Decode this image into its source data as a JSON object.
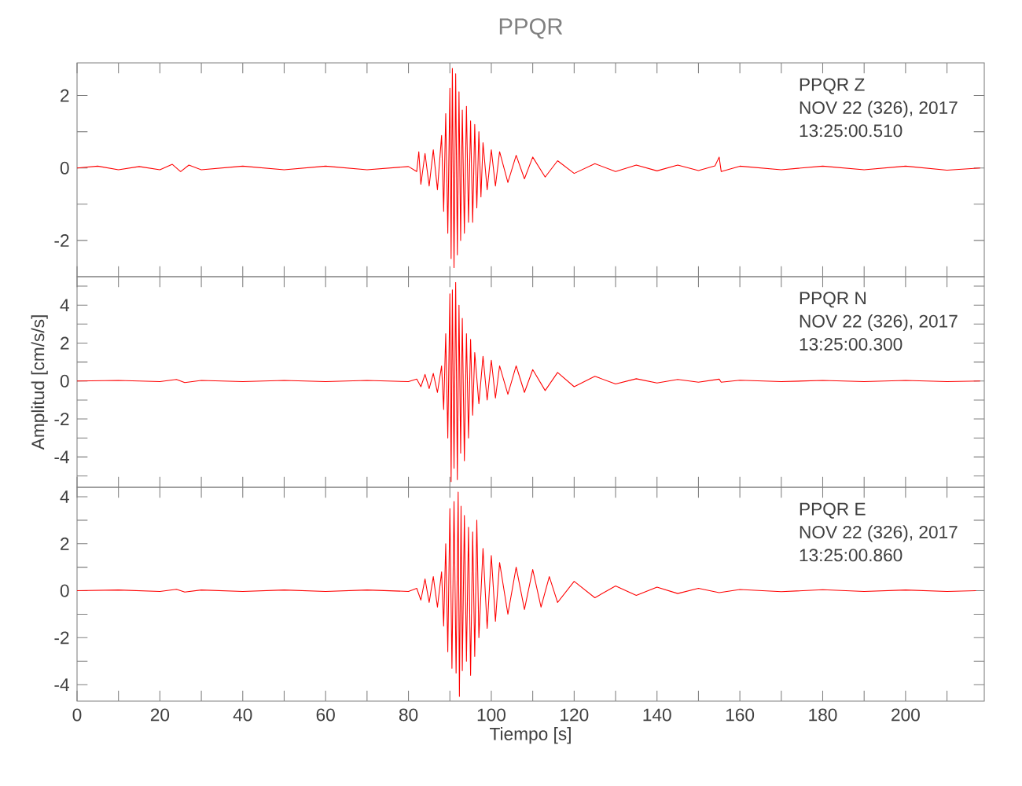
{
  "chart_data": [
    {
      "type": "line",
      "title": "PPQR",
      "color": "#ff0000",
      "tick_labels": "y",
      "annotations": [
        "PPQR   Z",
        "NOV 22 (326), 2017",
        "13:25:00.510"
      ],
      "xlim": [
        0,
        219
      ],
      "ylim": [
        -3,
        2.9
      ],
      "xticks": [
        0,
        {
          "value": 10,
          "label": null
        },
        20,
        {
          "value": 30,
          "label": null
        },
        40,
        {
          "value": 50,
          "label": null
        },
        60,
        {
          "value": 70,
          "label": null
        },
        80,
        {
          "value": 90,
          "label": null
        },
        100,
        {
          "value": 110,
          "label": null
        },
        120,
        {
          "value": 130,
          "label": null
        },
        140,
        {
          "value": 150,
          "label": null
        },
        160,
        {
          "value": 170,
          "label": null
        },
        180,
        {
          "value": 190,
          "label": null
        },
        200,
        {
          "value": 210,
          "label": null
        }
      ],
      "yticks": [
        -2,
        {
          "value": -1,
          "label": null
        },
        0,
        {
          "value": 1,
          "label": null
        },
        2
      ],
      "x": [
        0,
        5,
        10,
        15,
        20,
        23,
        25,
        27,
        30,
        40,
        50,
        60,
        70,
        80,
        82,
        82.5,
        83,
        84,
        85,
        86,
        87,
        88,
        88.5,
        89,
        89.5,
        90,
        90.3,
        90.6,
        91,
        91.4,
        91.8,
        92.2,
        92.6,
        93,
        93.5,
        94,
        94.5,
        95,
        95.5,
        96,
        96.5,
        97,
        97.5,
        98,
        99,
        100,
        101,
        102,
        104,
        106,
        108,
        110,
        113,
        116,
        120,
        125,
        130,
        135,
        140,
        145,
        150,
        154,
        155,
        155.5,
        160,
        170,
        180,
        190,
        200,
        210,
        218
      ],
      "values": [
        0,
        0.05,
        -0.05,
        0.04,
        -0.05,
        0.1,
        -0.1,
        0.08,
        -0.05,
        0.05,
        -0.05,
        0.05,
        -0.05,
        0.04,
        -0.1,
        0.45,
        -0.45,
        0.4,
        -0.5,
        0.5,
        -0.6,
        0.9,
        -1.2,
        1.5,
        -1.8,
        2.2,
        -2.5,
        2.75,
        -2.75,
        2.6,
        -2.4,
        2.1,
        -2.0,
        1.6,
        -1.8,
        1.7,
        -1.5,
        1.3,
        -1.5,
        1.2,
        -1.1,
        1.0,
        -0.8,
        0.7,
        -0.6,
        0.5,
        -0.5,
        0.45,
        -0.4,
        0.35,
        -0.3,
        0.3,
        -0.25,
        0.2,
        -0.15,
        0.12,
        -0.1,
        0.08,
        -0.08,
        0.08,
        -0.07,
        0.06,
        0.3,
        -0.1,
        0.05,
        -0.05,
        0.05,
        -0.05,
        0.05,
        -0.06,
        0
      ]
    },
    {
      "type": "line",
      "ylabel": "Amplitud [cm/s/s]",
      "color": "#ff0000",
      "tick_labels": "y",
      "annotations": [
        "PPQR   N",
        "NOV 22 (326), 2017",
        "13:25:00.300"
      ],
      "xlim": [
        0,
        219
      ],
      "ylim": [
        -5.6,
        5.5
      ],
      "xticks": [
        0,
        {
          "value": 10,
          "label": null
        },
        20,
        {
          "value": 30,
          "label": null
        },
        40,
        {
          "value": 50,
          "label": null
        },
        60,
        {
          "value": 70,
          "label": null
        },
        80,
        {
          "value": 90,
          "label": null
        },
        100,
        {
          "value": 110,
          "label": null
        },
        120,
        {
          "value": 130,
          "label": null
        },
        140,
        {
          "value": 150,
          "label": null
        },
        160,
        {
          "value": 170,
          "label": null
        },
        180,
        {
          "value": 190,
          "label": null
        },
        200,
        {
          "value": 210,
          "label": null
        }
      ],
      "yticks": [
        {
          "value": -5,
          "label": null
        },
        -4,
        {
          "value": -3,
          "label": null
        },
        -2,
        {
          "value": -1,
          "label": null
        },
        0,
        {
          "value": 1,
          "label": null
        },
        2,
        {
          "value": 3,
          "label": null
        },
        4,
        {
          "value": 5,
          "label": null
        }
      ],
      "x": [
        0,
        10,
        20,
        24,
        26,
        30,
        40,
        50,
        60,
        70,
        80,
        82,
        83,
        84,
        85,
        86,
        87,
        88,
        88.5,
        89,
        89.5,
        90,
        90.3,
        90.6,
        91,
        91.4,
        91.8,
        92.2,
        92.6,
        93,
        93.5,
        94,
        94.5,
        95,
        95.5,
        96,
        97,
        98,
        99,
        100,
        101,
        102,
        104,
        106,
        108,
        110,
        113,
        116,
        120,
        125,
        130,
        135,
        140,
        145,
        150,
        155,
        155.5,
        160,
        170,
        180,
        190,
        200,
        210,
        218
      ],
      "values": [
        0,
        0.03,
        -0.03,
        0.08,
        -0.08,
        0.03,
        -0.03,
        0.03,
        -0.03,
        0.03,
        -0.03,
        0.1,
        -0.3,
        0.35,
        -0.4,
        0.4,
        -0.6,
        0.8,
        -1.5,
        2.5,
        -3.0,
        4.6,
        -5.3,
        4.8,
        -4.6,
        5.2,
        -5.2,
        4.0,
        -3.8,
        3.3,
        -4.2,
        2.5,
        -3.0,
        2.2,
        -1.8,
        1.5,
        -1.2,
        1.3,
        -1.0,
        1.1,
        -0.9,
        0.8,
        -0.7,
        0.8,
        -0.6,
        0.6,
        -0.5,
        0.45,
        -0.3,
        0.25,
        -0.15,
        0.12,
        -0.1,
        0.08,
        -0.06,
        0.1,
        -0.06,
        0.04,
        -0.03,
        0.03,
        -0.03,
        0.03,
        -0.03,
        0
      ]
    },
    {
      "type": "line",
      "xlabel": "Tiempo [s]",
      "color": "#ff0000",
      "annotations": [
        "PPQR   E",
        "NOV 22 (326), 2017",
        "13:25:00.860"
      ],
      "xlim": [
        0,
        219
      ],
      "ylim": [
        -4.7,
        4.4
      ],
      "xticks": [
        0,
        {
          "value": 10,
          "label": null
        },
        20,
        {
          "value": 30,
          "label": null
        },
        40,
        {
          "value": 50,
          "label": null
        },
        60,
        {
          "value": 70,
          "label": null
        },
        80,
        {
          "value": 90,
          "label": null
        },
        100,
        {
          "value": 110,
          "label": null
        },
        120,
        {
          "value": 130,
          "label": null
        },
        140,
        {
          "value": 150,
          "label": null
        },
        160,
        {
          "value": 170,
          "label": null
        },
        180,
        {
          "value": 190,
          "label": null
        },
        200,
        {
          "value": 210,
          "label": null
        }
      ],
      "yticks": [
        -4,
        {
          "value": -3,
          "label": null
        },
        -2,
        {
          "value": -1,
          "label": null
        },
        0,
        {
          "value": 1,
          "label": null
        },
        2,
        {
          "value": 3,
          "label": null
        },
        4
      ],
      "x": [
        0,
        10,
        20,
        24,
        26,
        30,
        40,
        50,
        60,
        70,
        80,
        82,
        83,
        84,
        85,
        86,
        87,
        88,
        88.5,
        89,
        89.5,
        90,
        90.5,
        91,
        91.5,
        92,
        92.3,
        92.7,
        93,
        93.5,
        94,
        94.5,
        95,
        95.5,
        96,
        96.5,
        97,
        98,
        99,
        100,
        101,
        102,
        104,
        106,
        108,
        110,
        112,
        114,
        116,
        120,
        125,
        130,
        135,
        140,
        145,
        150,
        155,
        160,
        170,
        180,
        190,
        200,
        210,
        217
      ],
      "values": [
        0,
        0.03,
        -0.03,
        0.06,
        -0.06,
        0.03,
        -0.03,
        0.03,
        -0.03,
        0.03,
        -0.03,
        0.1,
        -0.4,
        0.5,
        -0.5,
        0.6,
        -0.7,
        0.8,
        -1.5,
        2.0,
        -2.6,
        3.5,
        -3.3,
        3.8,
        -3.5,
        4.2,
        -4.5,
        3.6,
        -3.4,
        3.2,
        -3.0,
        2.7,
        -3.6,
        2.5,
        -2.8,
        3.0,
        -2.0,
        1.8,
        -1.6,
        1.5,
        -1.3,
        1.2,
        -1.0,
        1.0,
        -0.8,
        0.9,
        -0.7,
        0.6,
        -0.5,
        0.4,
        -0.3,
        0.2,
        -0.2,
        0.15,
        -0.12,
        0.1,
        -0.08,
        0.05,
        -0.04,
        0.04,
        -0.03,
        0.03,
        -0.03,
        0
      ]
    }
  ]
}
